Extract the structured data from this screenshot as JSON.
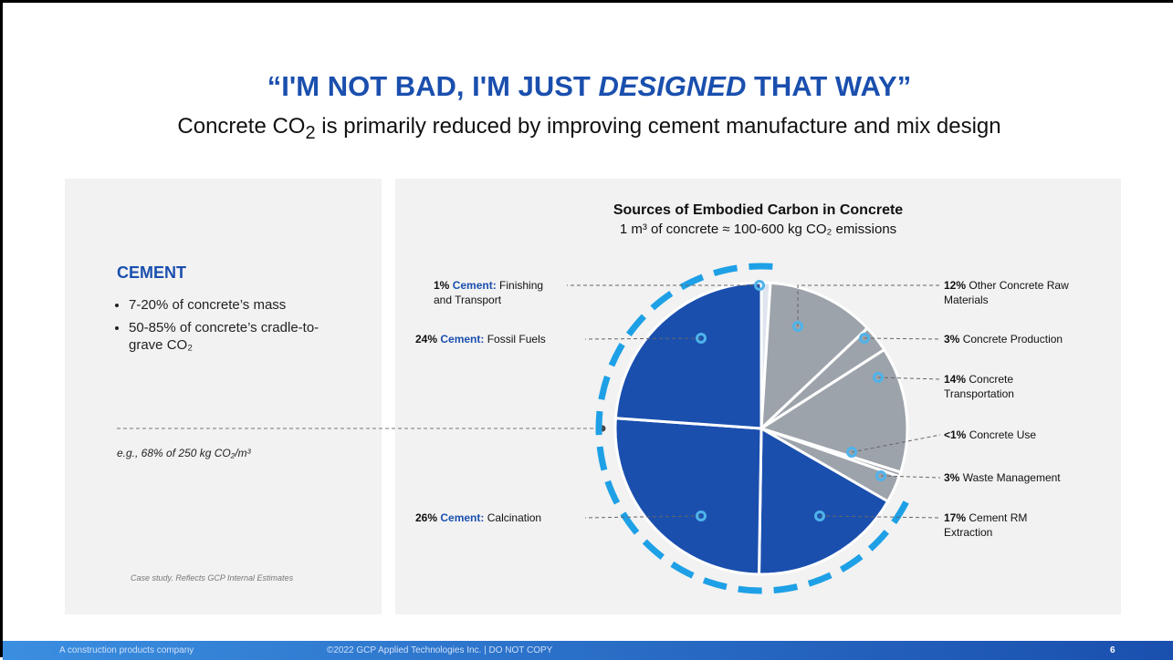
{
  "slide": {
    "title": [
      "“I'M NOT BAD, I'M JUST ",
      "DESIGNED",
      " THAT WAY”"
    ],
    "subtitle": {
      "before": "Concrete CO",
      "sub": "2",
      "after": " is primarily reduced by improving cement manufacture and mix design"
    },
    "left": {
      "heading": "CEMENT",
      "bullets": [
        "7-20% of concrete’s mass",
        "50-85% of concrete’s cradle-to-grave CO₂"
      ],
      "example": "e.g., 68% of 250 kg CO₂/m³",
      "note": "Case study. Reflects GCP Internal Estimates"
    },
    "footer": {
      "tagline": "A construction products company",
      "copyright": "©2022 GCP Applied Technologies Inc. | DO NOT COPY",
      "page": "6"
    }
  },
  "chart_data": {
    "type": "pie",
    "title": "Sources of Embodied Carbon in Concrete",
    "subtitle": "1 m³ of concrete ≈ 100-600 kg CO₂ emissions",
    "categories": [
      "Cement: Finishing and Transport",
      "Other Concrete Raw Materials",
      "Concrete Production",
      "Concrete Transportation",
      "Concrete Use",
      "Waste Management",
      "Cement RM Extraction",
      "Cement: Calcination",
      "Cement: Fossil Fuels"
    ],
    "values": [
      1,
      12,
      3,
      14,
      0.5,
      3,
      17,
      26,
      24
    ],
    "value_labels": [
      "1%",
      "12%",
      "3%",
      "14%",
      "<1%",
      "3%",
      "17%",
      "26%",
      "24%"
    ],
    "colors": [
      "#dfe5ef",
      "#9da3aa",
      "#9da3aa",
      "#9da3aa",
      "#9da3aa",
      "#9da3aa",
      "#1a4fae",
      "#1a4fae",
      "#1a4fae"
    ]
  }
}
